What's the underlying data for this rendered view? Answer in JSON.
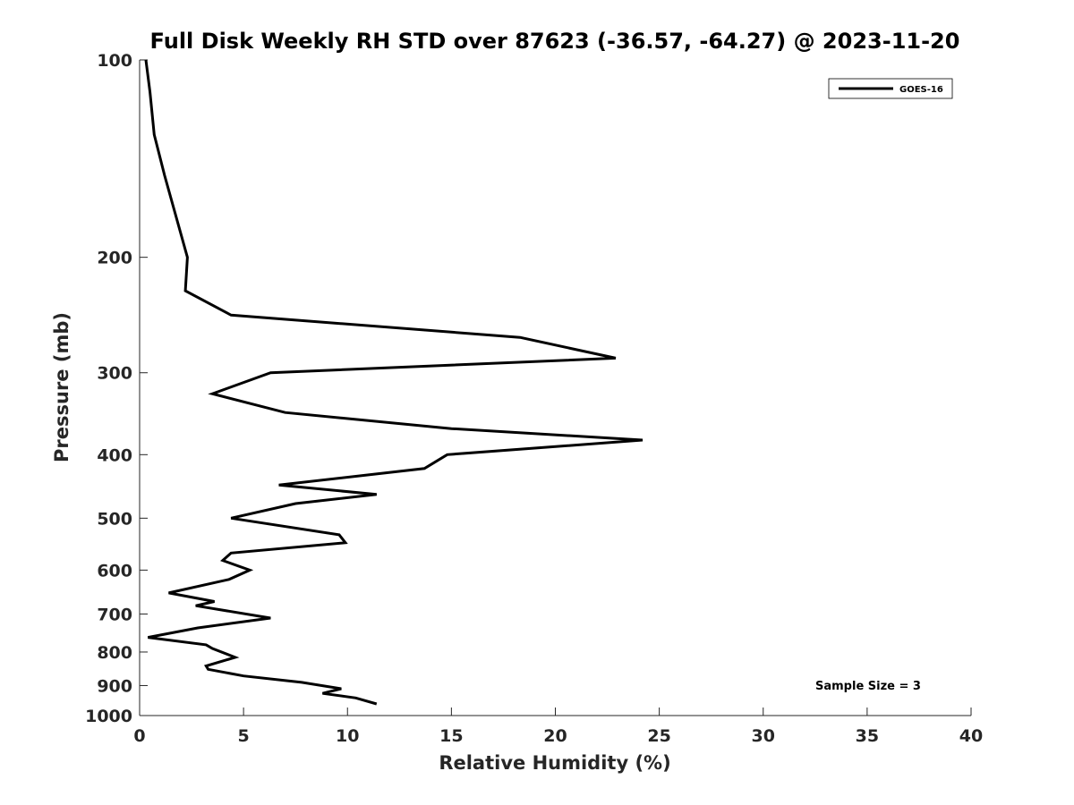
{
  "chart_data": {
    "type": "line",
    "title": "Full Disk Weekly RH STD over 87623 (-36.57, -64.27) @ 2023-11-20",
    "xlabel": "Relative Humidity (%)",
    "ylabel": "Pressure (mb)",
    "xlim": [
      0,
      40
    ],
    "ylim": [
      100,
      1000
    ],
    "y_scale": "log",
    "y_reversed": true,
    "x_ticks": [
      0,
      5,
      10,
      15,
      20,
      25,
      30,
      35,
      40
    ],
    "x_tick_labels": [
      "0",
      "5",
      "10",
      "15",
      "20",
      "25",
      "30",
      "35",
      "40"
    ],
    "y_ticks": [
      100,
      200,
      300,
      400,
      500,
      600,
      700,
      800,
      900,
      1000
    ],
    "y_tick_labels": [
      "100",
      "200",
      "300",
      "400",
      "500",
      "600",
      "700",
      "800",
      "900",
      "1000"
    ],
    "grid": false,
    "legend_position": "top-right",
    "annotation": "Sample Size = 3",
    "series": [
      {
        "name": "GOES-16",
        "color": "#000000",
        "x": [
          0.3,
          0.5,
          0.7,
          1.2,
          2.3,
          2.3,
          2.2,
          4.4,
          18.3,
          22.9,
          6.3,
          3.5,
          7.0,
          15.0,
          24.2,
          14.8,
          13.7,
          6.7,
          11.4,
          7.5,
          4.4,
          9.6,
          9.9,
          4.4,
          4.0,
          5.3,
          4.3,
          1.4,
          3.6,
          2.7,
          6.3,
          2.8,
          0.4,
          3.2,
          3.5,
          4.6,
          3.2,
          3.3,
          5.0,
          7.8,
          9.7,
          8.8,
          10.4,
          11.4
        ],
        "y": [
          100,
          112,
          130,
          150,
          200,
          200,
          225,
          245,
          265,
          285,
          300,
          323,
          345,
          365,
          380,
          400,
          420,
          445,
          460,
          475,
          500,
          530,
          545,
          565,
          580,
          600,
          620,
          650,
          670,
          680,
          710,
          735,
          760,
          780,
          790,
          815,
          840,
          850,
          870,
          890,
          910,
          925,
          940,
          960
        ]
      }
    ]
  }
}
